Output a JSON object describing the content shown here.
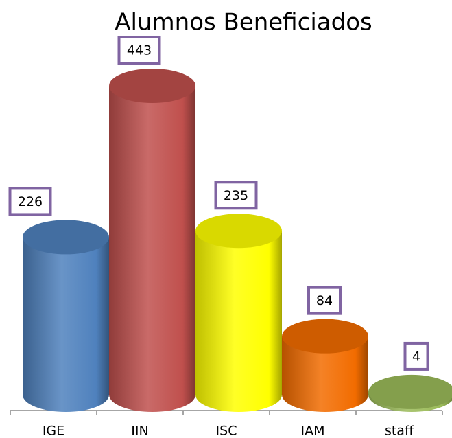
{
  "chart_data": {
    "type": "bar",
    "title": "Alumnos Beneficiados",
    "categories": [
      "IGE",
      "IIN",
      "ISC",
      "IAM",
      "staff"
    ],
    "values": [
      226,
      443,
      235,
      84,
      4
    ],
    "colors": [
      "#4f81bd",
      "#c0504d",
      "#ffff00",
      "#f26c00",
      "#9bbb59"
    ]
  }
}
